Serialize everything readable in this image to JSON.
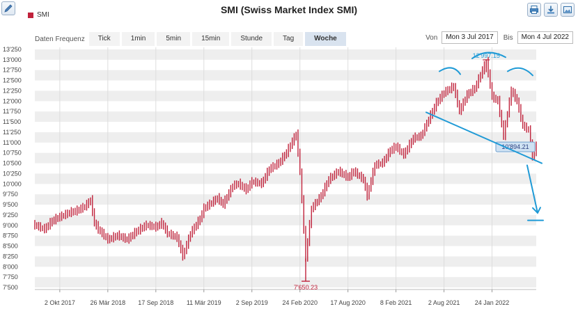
{
  "header": {
    "title": "SMI (Swiss Market Index SMI)",
    "legend_label": "SMI"
  },
  "frequency": {
    "label": "Daten Frequenz",
    "options": [
      "Tick",
      "1min",
      "5min",
      "15min",
      "Stunde",
      "Tag",
      "Woche"
    ],
    "selected": "Woche"
  },
  "range": {
    "from_label": "Von",
    "from_value": "Mon 3 Jul 2017",
    "to_label": "Bis",
    "to_value": "Mon 4 Jul 2022"
  },
  "colors": {
    "series": "#c0223b",
    "annotation": "#1f9ad6",
    "band": "#eeeeee"
  },
  "icons": {
    "edit": "pencil-icon",
    "tools": [
      "print-icon",
      "download-icon",
      "export-image-icon"
    ]
  },
  "chart_data": {
    "type": "line",
    "ylim": [
      7450,
      13300
    ],
    "xlim": [
      "2017-07-03",
      "2022-07-04"
    ],
    "yticks": [
      7500,
      7750,
      8000,
      8250,
      8500,
      8750,
      9000,
      9250,
      9500,
      9750,
      10000,
      10250,
      10500,
      10750,
      11000,
      11250,
      11500,
      11750,
      12000,
      12250,
      12500,
      12750,
      13000,
      13250
    ],
    "ytick_labels": [
      "7'500",
      "7'750",
      "8'000",
      "8'250",
      "8'500",
      "8'750",
      "9'000",
      "9'250",
      "9'500",
      "9'750",
      "10'000",
      "10'250",
      "10'500",
      "10'750",
      "11'000",
      "11'250",
      "11'500",
      "11'750",
      "12'000",
      "12'250",
      "12'500",
      "12'750",
      "13'000",
      "13'250"
    ],
    "xticks": [
      {
        "date": "2017-10-02",
        "label": "2 Okt 2017"
      },
      {
        "date": "2018-03-26",
        "label": "26 Mär 2018"
      },
      {
        "date": "2018-09-17",
        "label": "17 Sep 2018"
      },
      {
        "date": "2019-03-11",
        "label": "11 Mär 2019"
      },
      {
        "date": "2019-09-02",
        "label": "2 Sep 2019"
      },
      {
        "date": "2020-02-24",
        "label": "24 Feb 2020"
      },
      {
        "date": "2020-08-17",
        "label": "17 Aug 2020"
      },
      {
        "date": "2021-02-08",
        "label": "8 Feb 2021"
      },
      {
        "date": "2021-08-02",
        "label": "2 Aug 2021"
      },
      {
        "date": "2022-01-24",
        "label": "24 Jan 2022"
      }
    ],
    "series": [
      {
        "values": [
          [
            "2017-07-03",
            9000
          ],
          [
            "2017-08-07",
            8900
          ],
          [
            "2017-09-04",
            9100
          ],
          [
            "2017-10-02",
            9200
          ],
          [
            "2017-11-06",
            9300
          ],
          [
            "2017-12-04",
            9350
          ],
          [
            "2018-01-01",
            9450
          ],
          [
            "2018-01-22",
            9600
          ],
          [
            "2018-02-05",
            9050
          ],
          [
            "2018-02-19",
            8900
          ],
          [
            "2018-03-26",
            8650
          ],
          [
            "2018-05-01",
            8750
          ],
          [
            "2018-06-04",
            8650
          ],
          [
            "2018-07-09",
            8850
          ],
          [
            "2018-08-13",
            9000
          ],
          [
            "2018-09-17",
            8950
          ],
          [
            "2018-10-08",
            9050
          ],
          [
            "2018-10-29",
            8800
          ],
          [
            "2018-12-03",
            8700
          ],
          [
            "2018-12-24",
            8250
          ],
          [
            "2019-01-21",
            8800
          ],
          [
            "2019-02-25",
            9150
          ],
          [
            "2019-03-11",
            9400
          ],
          [
            "2019-04-29",
            9650
          ],
          [
            "2019-05-20",
            9500
          ],
          [
            "2019-06-24",
            9950
          ],
          [
            "2019-07-15",
            10000
          ],
          [
            "2019-08-12",
            9850
          ],
          [
            "2019-09-02",
            10050
          ],
          [
            "2019-10-07",
            10000
          ],
          [
            "2019-11-04",
            10350
          ],
          [
            "2019-12-09",
            10500
          ],
          [
            "2020-01-06",
            10750
          ],
          [
            "2020-02-10",
            11200
          ],
          [
            "2020-02-24",
            10300
          ],
          [
            "2020-03-16",
            8200
          ],
          [
            "2020-04-06",
            9400
          ],
          [
            "2020-05-11",
            9700
          ],
          [
            "2020-06-08",
            10100
          ],
          [
            "2020-07-13",
            10300
          ],
          [
            "2020-08-17",
            10150
          ],
          [
            "2020-09-07",
            10300
          ],
          [
            "2020-10-12",
            10100
          ],
          [
            "2020-10-26",
            9700
          ],
          [
            "2020-11-23",
            10450
          ],
          [
            "2020-12-21",
            10500
          ],
          [
            "2021-01-18",
            10800
          ],
          [
            "2021-02-08",
            10900
          ],
          [
            "2021-03-08",
            10700
          ],
          [
            "2021-04-12",
            11100
          ],
          [
            "2021-05-10",
            11150
          ],
          [
            "2021-06-07",
            11550
          ],
          [
            "2021-07-05",
            11950
          ],
          [
            "2021-08-02",
            12200
          ],
          [
            "2021-09-06",
            12350
          ],
          [
            "2021-09-27",
            11750
          ],
          [
            "2021-10-25",
            12150
          ],
          [
            "2021-11-22",
            12300
          ],
          [
            "2021-12-27",
            12850
          ],
          [
            "2022-01-03",
            12950
          ],
          [
            "2022-01-24",
            12100
          ],
          [
            "2022-02-14",
            12000
          ],
          [
            "2022-03-07",
            11150
          ],
          [
            "2022-04-04",
            12250
          ],
          [
            "2022-04-25",
            12000
          ],
          [
            "2022-05-16",
            11400
          ],
          [
            "2022-06-06",
            11300
          ],
          [
            "2022-06-20",
            10650
          ],
          [
            "2022-07-04",
            10894.21
          ]
        ]
      }
    ],
    "min": {
      "date": "2020-03-16",
      "value": 7650.23,
      "label": "7'650.23"
    },
    "max": {
      "date": "2022-01-03",
      "value": 12997.15,
      "label": "12'997.15"
    },
    "last": {
      "date": "2022-07-04",
      "value": 10894.21,
      "label": "10'894.21"
    }
  }
}
